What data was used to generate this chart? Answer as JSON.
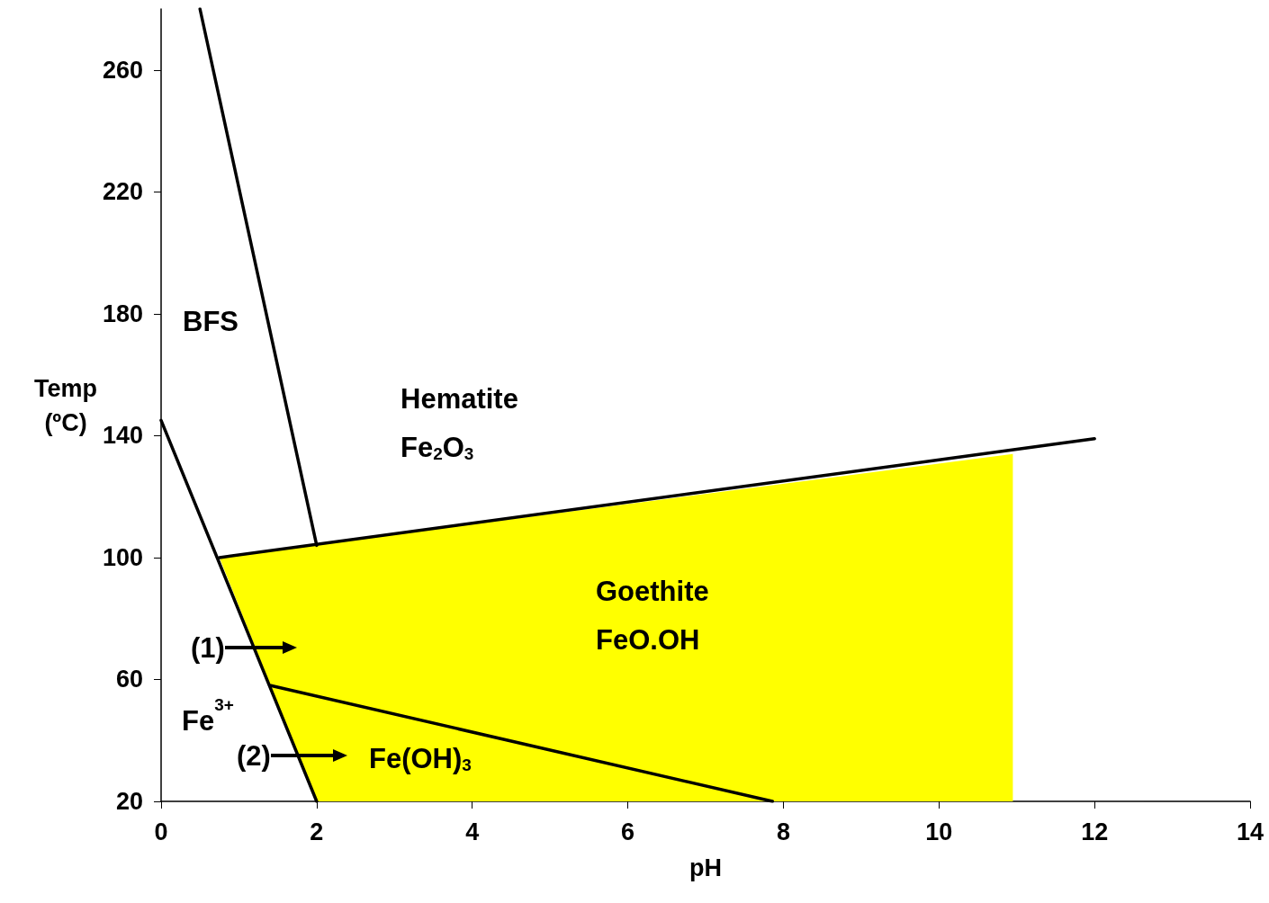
{
  "chart_data": {
    "type": "line",
    "xlabel": "pH",
    "ylabel": "Temp\n(ºC)",
    "xlim": [
      0,
      14
    ],
    "xticks": [
      0,
      2,
      4,
      6,
      8,
      10,
      12,
      14
    ],
    "ylim": [
      20,
      280
    ],
    "yticks": [
      20,
      60,
      100,
      140,
      180,
      220,
      260
    ],
    "grid": false,
    "marker": "none",
    "line_style": "solid",
    "series": [
      {
        "type": "area",
        "color": "#ffff00",
        "x": [
          2,
          0.75,
          2,
          10.95
        ],
        "values": [
          20,
          100,
          104.3,
          134
        ]
      },
      {
        "color": "#000000",
        "x": [
          0.5,
          2.0
        ],
        "values": [
          280,
          104
        ]
      },
      {
        "color": "#000000",
        "x": [
          0.75,
          12
        ],
        "values": [
          100,
          139
        ]
      },
      {
        "color": "#000000",
        "x": [
          0,
          2
        ],
        "values": [
          145,
          20
        ]
      },
      {
        "color": "#000000",
        "x": [
          1.41,
          7.86
        ],
        "values": [
          58,
          20
        ]
      }
    ],
    "annotations": [
      "BFS",
      "Hematite\nFe$_{2}$O$_{3}$",
      "Goethite\nFeO.OH",
      "Fe$^{3+}$",
      "Fe(OH)$_{3}$",
      "(1)",
      "(2)"
    ]
  }
}
